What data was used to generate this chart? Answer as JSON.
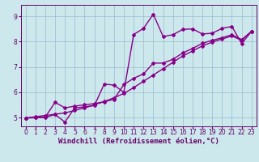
{
  "xlabel": "Windchill (Refroidissement éolien,°C)",
  "ylabel": "",
  "bg_color": "#cce8ec",
  "line_color": "#880088",
  "grid_color": "#99bbcc",
  "axis_color": "#660066",
  "xlim": [
    -0.5,
    23.5
  ],
  "ylim": [
    4.65,
    9.45
  ],
  "xticks": [
    0,
    1,
    2,
    3,
    4,
    5,
    6,
    7,
    8,
    9,
    10,
    11,
    12,
    13,
    14,
    15,
    16,
    17,
    18,
    19,
    20,
    21,
    22,
    23
  ],
  "yticks": [
    5,
    6,
    7,
    8,
    9
  ],
  "line1_x": [
    0,
    1,
    2,
    3,
    4,
    5,
    6,
    7,
    8,
    9,
    10,
    11,
    12,
    13,
    14,
    15,
    16,
    17,
    18,
    19,
    20,
    21,
    22,
    23
  ],
  "line1_y": [
    4.98,
    4.99,
    5.0,
    5.12,
    4.82,
    5.38,
    5.42,
    5.47,
    6.32,
    6.28,
    6.0,
    8.28,
    8.52,
    9.08,
    8.2,
    8.27,
    8.48,
    8.5,
    8.3,
    8.33,
    8.52,
    8.6,
    7.92,
    8.4
  ],
  "line2_x": [
    0,
    1,
    2,
    3,
    4,
    5,
    6,
    7,
    8,
    9,
    10,
    11,
    12,
    13,
    14,
    15,
    16,
    17,
    18,
    19,
    20,
    21,
    22,
    23
  ],
  "line2_y": [
    4.98,
    5.0,
    5.02,
    5.6,
    5.38,
    5.45,
    5.5,
    5.55,
    5.62,
    5.72,
    6.3,
    6.55,
    6.72,
    7.15,
    7.15,
    7.3,
    7.55,
    7.73,
    7.93,
    8.05,
    8.15,
    8.27,
    8.08,
    8.4
  ],
  "line3_x": [
    0,
    1,
    2,
    3,
    4,
    5,
    6,
    7,
    8,
    9,
    10,
    11,
    12,
    13,
    14,
    15,
    16,
    17,
    18,
    19,
    20,
    21,
    22,
    23
  ],
  "line3_y": [
    4.98,
    5.03,
    5.08,
    5.13,
    5.18,
    5.28,
    5.38,
    5.5,
    5.63,
    5.78,
    5.95,
    6.18,
    6.43,
    6.68,
    6.93,
    7.18,
    7.43,
    7.63,
    7.83,
    7.98,
    8.1,
    8.22,
    8.05,
    8.4
  ],
  "tick_fontsize": 5.5,
  "xlabel_fontsize": 6.5,
  "line_width": 1.0,
  "marker": "D",
  "marker_size": 2.0
}
